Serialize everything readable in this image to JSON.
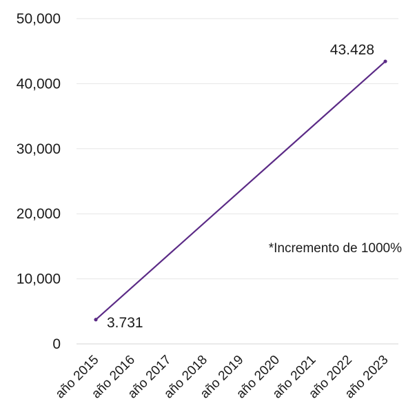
{
  "chart_data": {
    "type": "line",
    "title": "",
    "xlabel": "",
    "ylabel": "",
    "categories": [
      "año 2015",
      "año 2016",
      "año 2017",
      "año 2018",
      "año 2019",
      "año 2020",
      "año 2021",
      "año 2022",
      "año 2023"
    ],
    "series": [
      {
        "x": [
          "año 2015",
          "año 2023"
        ],
        "values": [
          3731,
          43428
        ],
        "data_labels": [
          "3.731",
          "43.428"
        ],
        "color": "#5b2a86"
      }
    ],
    "y_ticks": [
      0,
      10000,
      20000,
      30000,
      40000,
      50000
    ],
    "y_tick_labels": [
      "0",
      "10,000",
      "20,000",
      "30,000",
      "40,000",
      "50,000"
    ],
    "ylim": [
      0,
      50000
    ],
    "grid": true,
    "legend": "none",
    "annotation": "*Incremento de 1000%"
  },
  "colors": {
    "line": "#5b2a86",
    "grid": "#e6e6e6",
    "text": "#1a1a1a"
  }
}
